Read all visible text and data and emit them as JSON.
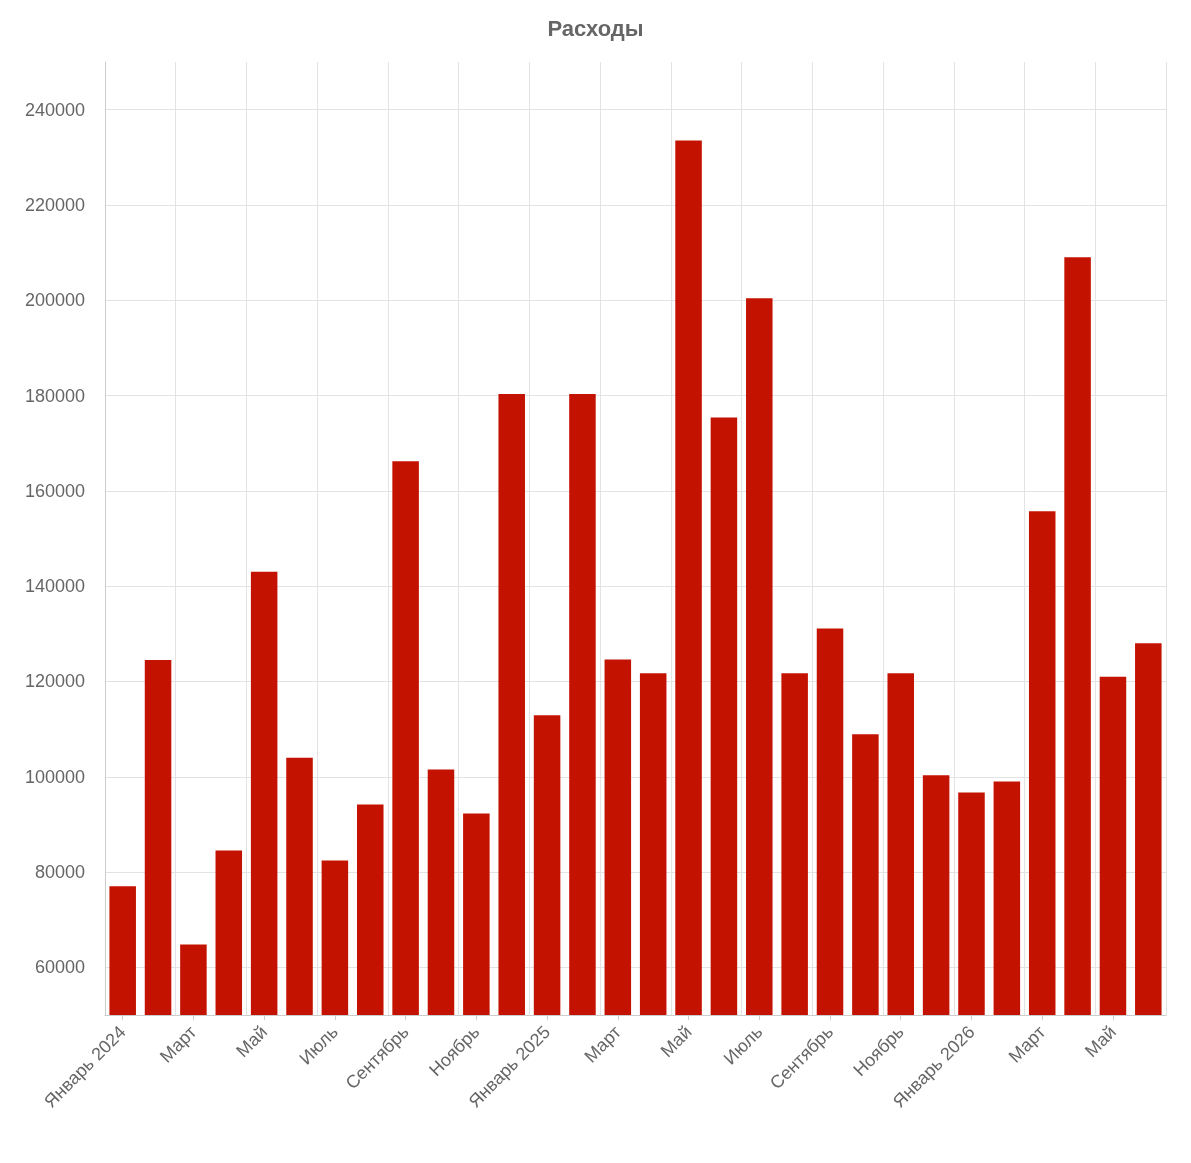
{
  "chart_data": {
    "type": "bar",
    "title": "Расходы",
    "categories": [
      "Январь 2024",
      null,
      "Март",
      null,
      "Май",
      null,
      "Июль",
      null,
      "Сентябрь",
      null,
      "Ноябрь",
      null,
      "Январь 2025",
      null,
      "Март",
      null,
      "Май",
      null,
      "Июль",
      null,
      "Сентябрь",
      null,
      "Ноябрь",
      null,
      "Январь 2026",
      null,
      "Март",
      null,
      "Май",
      null
    ],
    "values": [
      77000,
      124500,
      64800,
      84500,
      143000,
      104000,
      82400,
      94200,
      166200,
      101500,
      92300,
      180300,
      112900,
      180300,
      124600,
      121700,
      233500,
      175400,
      200400,
      121700,
      131100,
      108900,
      121700,
      100300,
      96700,
      99000,
      155700,
      209000,
      121000,
      128000
    ],
    "color": "#c41200",
    "ylim": [
      50000,
      250000
    ],
    "yticks": [
      60000,
      80000,
      100000,
      120000,
      140000,
      160000,
      180000,
      200000,
      220000,
      240000
    ],
    "grid": true
  }
}
